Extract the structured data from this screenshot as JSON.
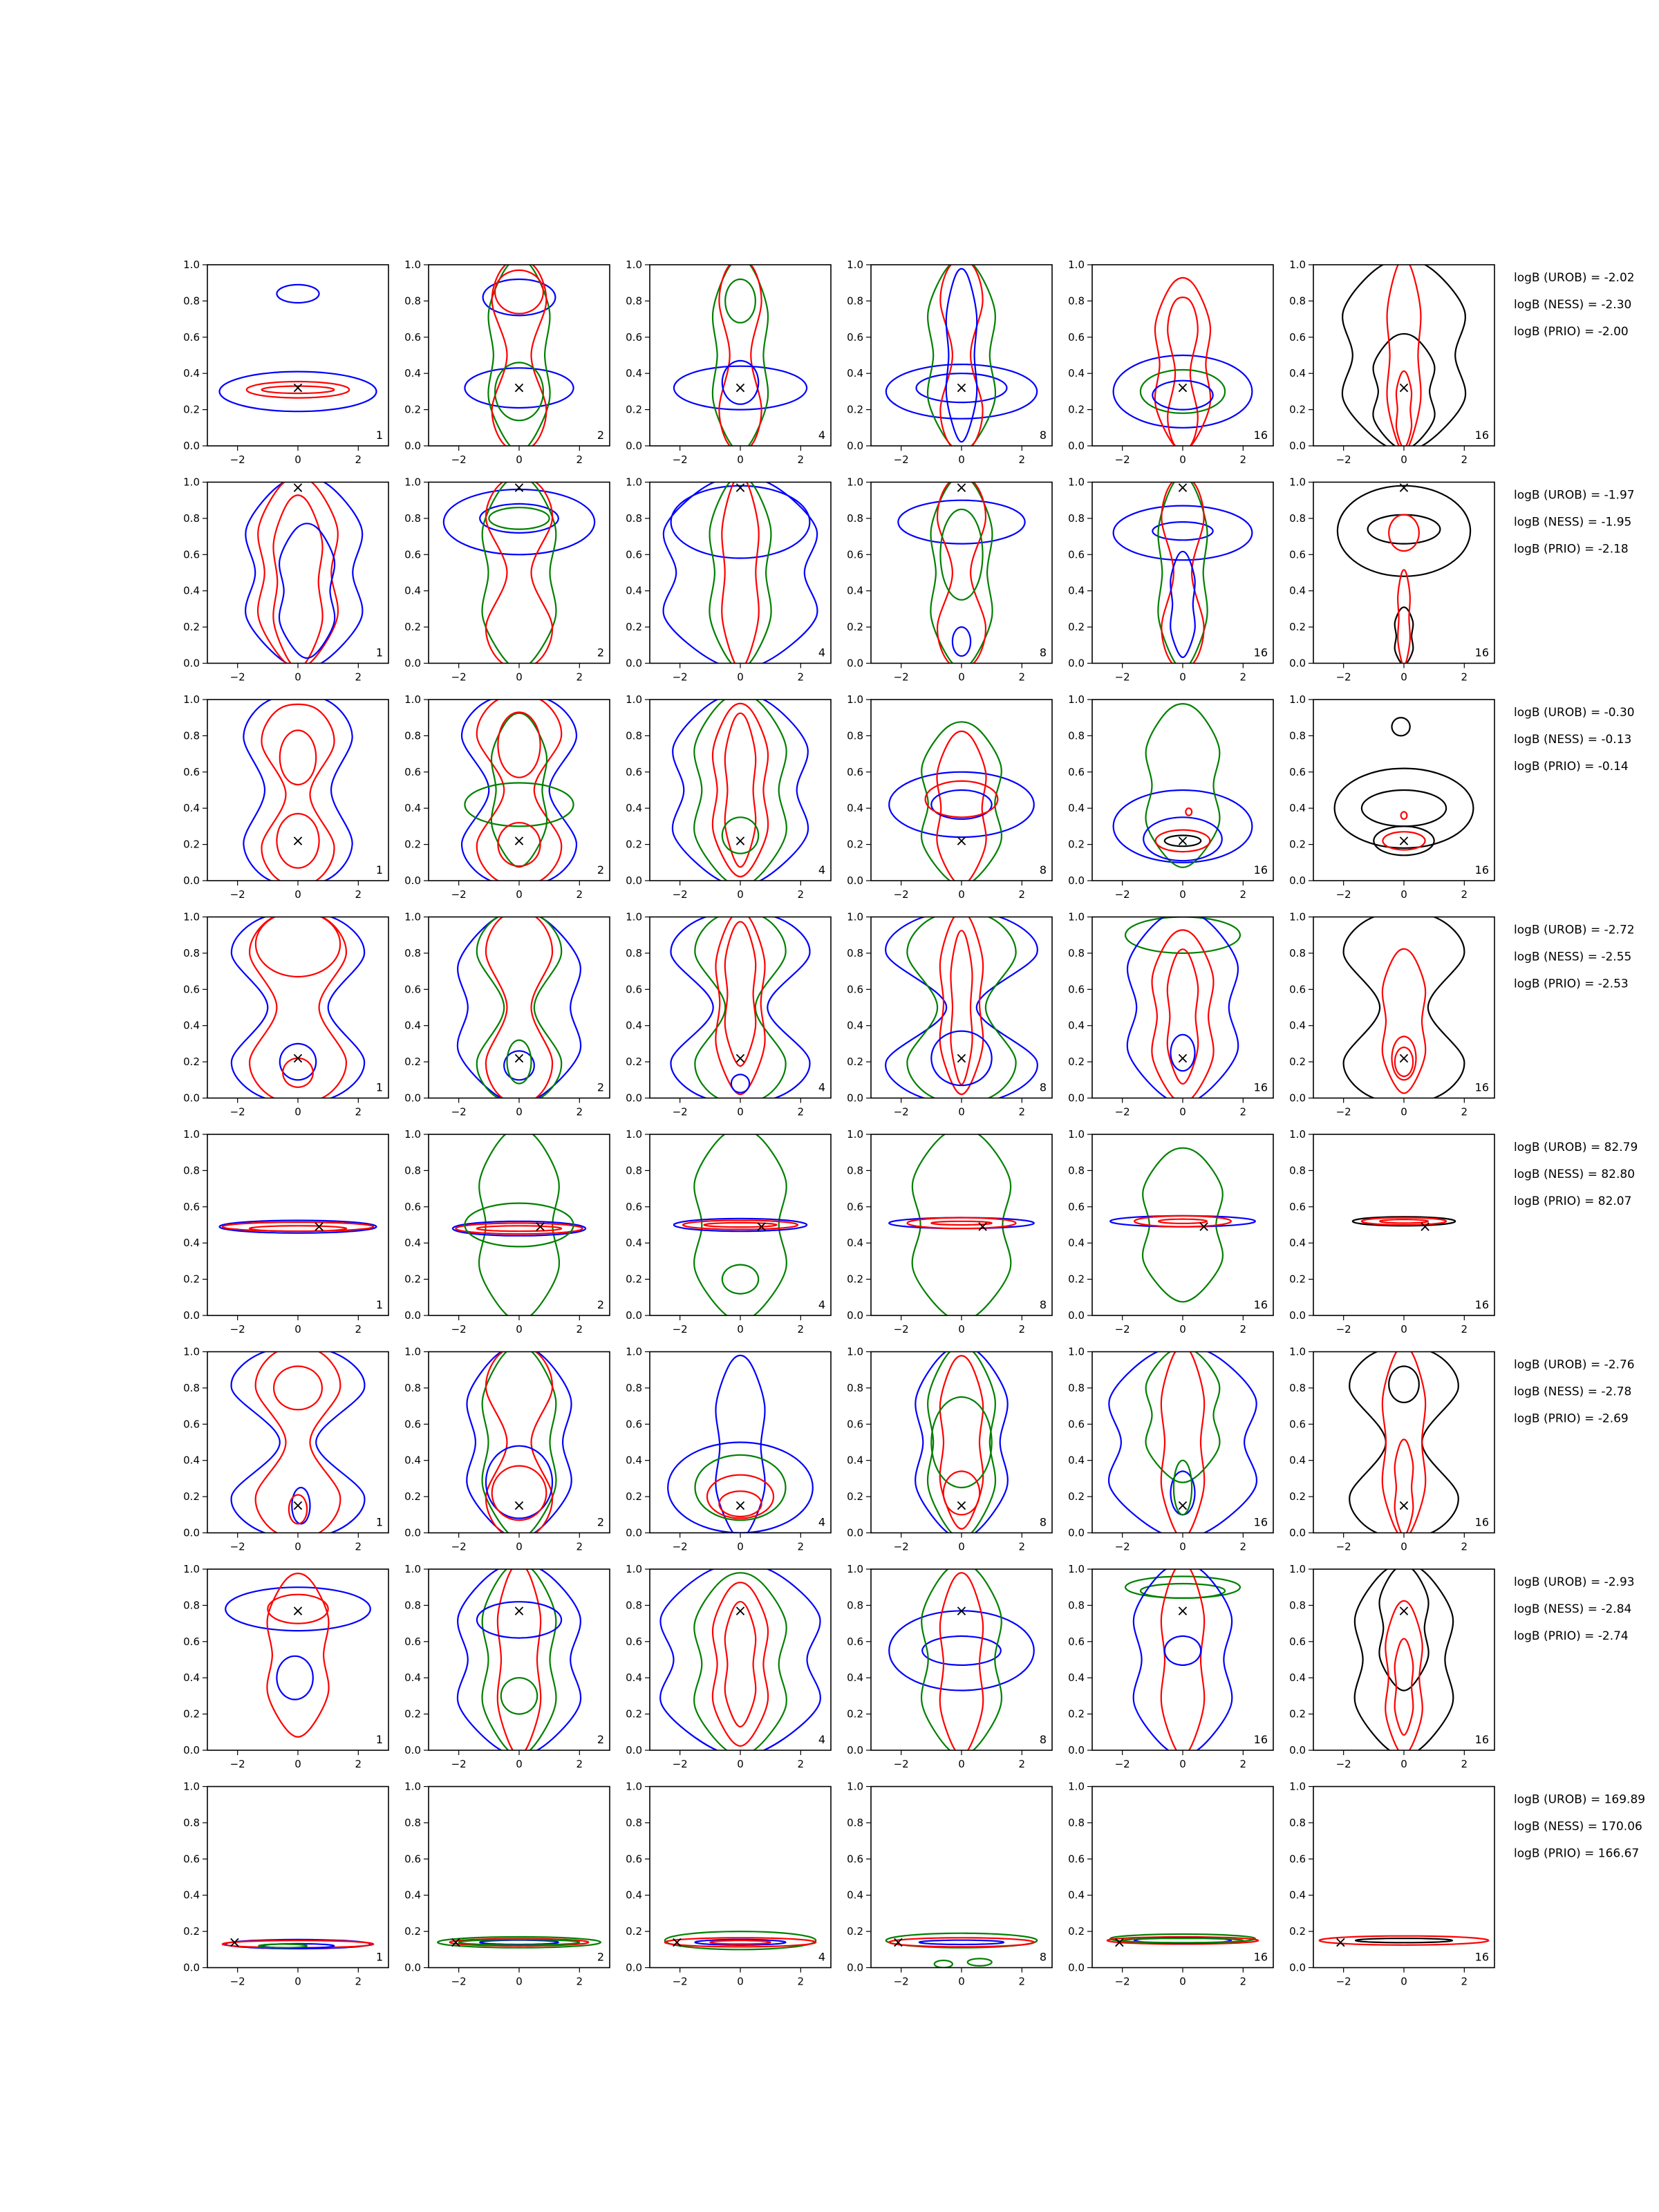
{
  "figure": {
    "colors": {
      "UROB": "#0000ff",
      "NESS": "#ff0000",
      "PRIO": "#008000",
      "reference": "#000000",
      "marker": "#000000"
    },
    "marker_symbol": "×",
    "column_panel_labels": [
      "1",
      "2",
      "4",
      "8",
      "16",
      "16"
    ]
  },
  "chart_data": {
    "type": "contour-grid",
    "xlim": [
      -3,
      3
    ],
    "ylim": [
      0,
      1
    ],
    "xticks": [
      -2,
      0,
      2
    ],
    "xtick_labels": [
      "−2",
      "0",
      "2"
    ],
    "yticks": [
      0,
      0.2,
      0.4,
      0.6,
      0.8,
      1.0
    ],
    "ytick_labels": [
      "0.0",
      "0.2",
      "0.4",
      "0.6",
      "0.8",
      "1.0"
    ],
    "rows": [
      {
        "marker": [
          0,
          0.32
        ],
        "annotations": [
          "logB (UROB) = -2.02",
          "logB (NESS) = -2.30",
          "logB (PRIO) = -2.00"
        ]
      },
      {
        "marker": [
          0,
          0.97
        ],
        "annotations": [
          "logB (UROB) = -1.97",
          "logB (NESS) = -1.95",
          "logB (PRIO) = -2.18"
        ]
      },
      {
        "marker": [
          0,
          0.22
        ],
        "annotations": [
          "logB (UROB) = -0.30",
          "logB (NESS) = -0.13",
          "logB (PRIO) = -0.14"
        ]
      },
      {
        "marker": [
          0,
          0.22
        ],
        "annotations": [
          "logB (UROB) = -2.72",
          "logB (NESS) = -2.55",
          "logB (PRIO) = -2.53"
        ]
      },
      {
        "marker": [
          0.7,
          0.49
        ],
        "annotations": [
          "logB (UROB) = 82.79",
          "logB (NESS) = 82.80",
          "logB (PRIO) = 82.07"
        ]
      },
      {
        "marker": [
          0,
          0.15
        ],
        "annotations": [
          "logB (UROB) = -2.76",
          "logB (NESS) = -2.78",
          "logB (PRIO) = -2.69"
        ]
      },
      {
        "marker": [
          0,
          0.77
        ],
        "annotations": [
          "logB (UROB) = -2.93",
          "logB (NESS) = -2.84",
          "logB (PRIO) = -2.74"
        ]
      },
      {
        "marker": [
          -2.1,
          0.14
        ],
        "annotations": [
          "logB (UROB) = 169.89",
          "logB (NESS) = 170.06",
          "logB (PRIO) = 166.67"
        ]
      }
    ]
  }
}
